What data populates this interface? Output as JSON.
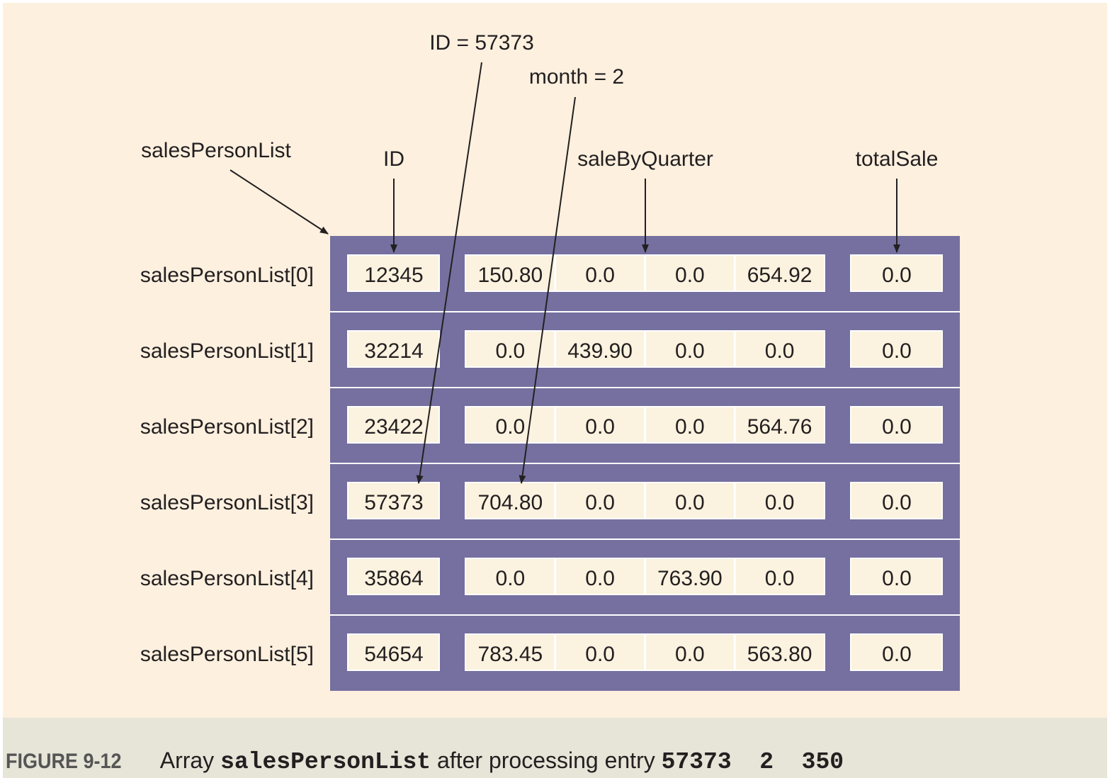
{
  "figure": {
    "background": "#fdf0df",
    "panel_color": "#75709f",
    "cell_color": "#fbf2df"
  },
  "labels": {
    "list_name": "salesPersonList",
    "col_id": "ID",
    "col_quarter": "saleByQuarter",
    "col_total": "totalSale",
    "annot_id": "ID = 57373",
    "annot_month": "month = 2"
  },
  "rows": [
    {
      "label": "salesPersonList[0]",
      "id": "12345",
      "quarters": [
        "150.80",
        "0.0",
        "0.0",
        "654.92"
      ],
      "total": "0.0"
    },
    {
      "label": "salesPersonList[1]",
      "id": "32214",
      "quarters": [
        "0.0",
        "439.90",
        "0.0",
        "0.0"
      ],
      "total": "0.0"
    },
    {
      "label": "salesPersonList[2]",
      "id": "23422",
      "quarters": [
        "0.0",
        "0.0",
        "0.0",
        "564.76"
      ],
      "total": "0.0"
    },
    {
      "label": "salesPersonList[3]",
      "id": "57373",
      "quarters": [
        "704.80",
        "0.0",
        "0.0",
        "0.0"
      ],
      "total": "0.0"
    },
    {
      "label": "salesPersonList[4]",
      "id": "35864",
      "quarters": [
        "0.0",
        "0.0",
        "763.90",
        "0.0"
      ],
      "total": "0.0"
    },
    {
      "label": "salesPersonList[5]",
      "id": "54654",
      "quarters": [
        "783.45",
        "0.0",
        "0.0",
        "563.80"
      ],
      "total": "0.0"
    }
  ],
  "caption": {
    "number": "FIGURE 9-12",
    "text_before": "Array",
    "code_name": "salesPersonList",
    "text_after": "after processing entry",
    "code_entry": "57373  2  350"
  }
}
